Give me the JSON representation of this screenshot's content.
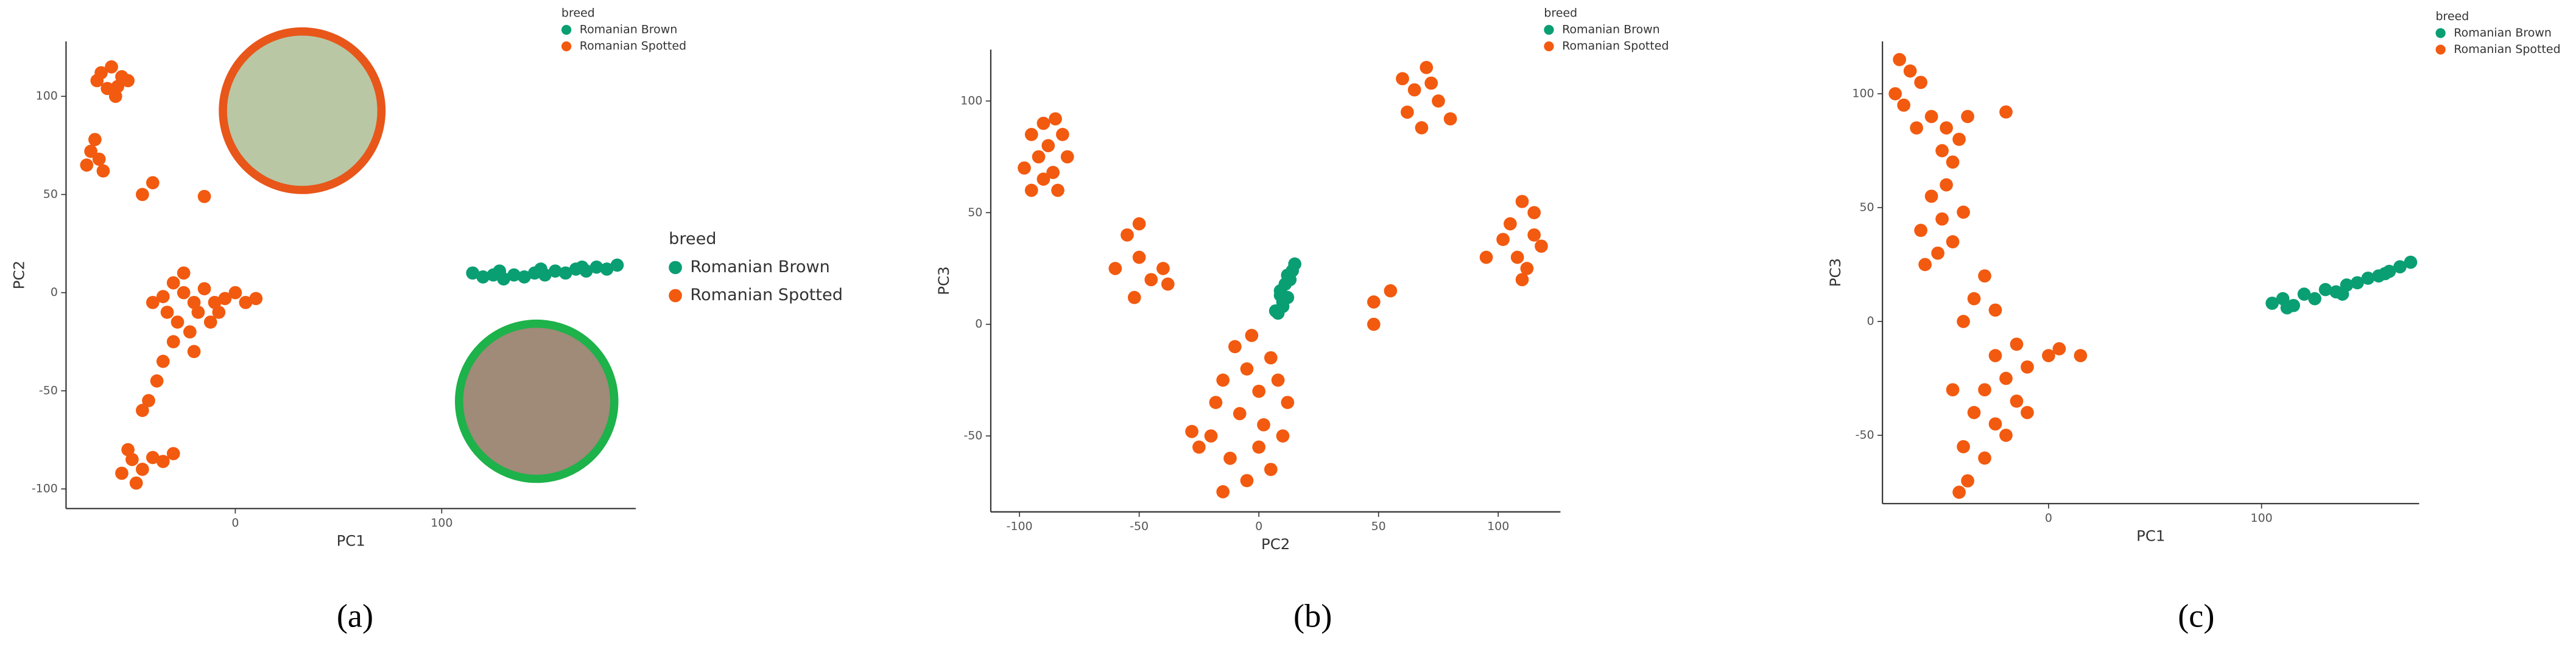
{
  "chart_data": [
    {
      "type": "scatter",
      "x_label": "PC1",
      "y_label": "PC2",
      "legend_title": "breed",
      "caption": "(a)",
      "xlim": [
        -82,
        194
      ],
      "ylim": [
        -110,
        128
      ],
      "xticks": [
        0,
        100
      ],
      "yticks": [
        -100,
        -50,
        0,
        50,
        100
      ],
      "series": [
        {
          "name": "Romanian Brown",
          "color": "#0a9e73",
          "x": [
            115,
            120,
            125,
            130,
            135,
            140,
            145,
            150,
            155,
            160,
            165,
            170,
            175,
            180,
            185,
            128,
            148,
            168
          ],
          "y": [
            10,
            8,
            9,
            7,
            9,
            8,
            10,
            9,
            11,
            10,
            12,
            11,
            13,
            12,
            14,
            11,
            12,
            13
          ]
        },
        {
          "name": "Romanian Spotted",
          "color": "#f25a0f",
          "x": [
            -65,
            -60,
            -55,
            -62,
            -57,
            -52,
            -67,
            -58,
            -70,
            -66,
            -72,
            -68,
            -64,
            -40,
            -45,
            -15,
            -30,
            -25,
            -20,
            -35,
            -15,
            -10,
            -5,
            5,
            10,
            -40,
            -28,
            -22,
            -30,
            -18,
            -25,
            -12,
            -20,
            -33,
            0,
            -8,
            -35,
            -38,
            -42,
            -45,
            -50,
            -45,
            -40,
            -55,
            -48,
            -35,
            -30,
            -52
          ],
          "y": [
            112,
            115,
            110,
            104,
            105,
            108,
            108,
            100,
            72,
            68,
            65,
            78,
            62,
            56,
            50,
            49,
            5,
            0,
            -5,
            -2,
            2,
            -5,
            -3,
            -5,
            -3,
            -5,
            -15,
            -20,
            -25,
            -10,
            10,
            -15,
            -30,
            -10,
            0,
            -10,
            -35,
            -45,
            -55,
            -60,
            -85,
            -90,
            -84,
            -92,
            -97,
            -86,
            -82,
            -80
          ]
        }
      ]
    },
    {
      "type": "scatter",
      "x_label": "PC2",
      "y_label": "PC3",
      "legend_title": "breed",
      "caption": "(b)",
      "xlim": [
        -112,
        126
      ],
      "ylim": [
        -84,
        123
      ],
      "xticks": [
        -100,
        -50,
        0,
        50,
        100
      ],
      "yticks": [
        -50,
        0,
        50,
        100
      ],
      "series": [
        {
          "name": "Romanian Brown",
          "color": "#0a9e73",
          "x": [
            8,
            10,
            12,
            9,
            11,
            13,
            14,
            10,
            12,
            15,
            7,
            9
          ],
          "y": [
            5,
            8,
            12,
            15,
            18,
            20,
            24,
            10,
            22,
            27,
            6,
            13
          ]
        },
        {
          "name": "Romanian Spotted",
          "color": "#f25a0f",
          "x": [
            -95,
            -90,
            -85,
            -92,
            -88,
            -82,
            -98,
            -86,
            -80,
            -95,
            -84,
            -90,
            -55,
            -50,
            -60,
            -50,
            -45,
            -52,
            -40,
            -38,
            60,
            65,
            70,
            75,
            62,
            68,
            80,
            72,
            105,
            110,
            115,
            108,
            112,
            118,
            102,
            95,
            110,
            115,
            48,
            55,
            48,
            -10,
            -5,
            0,
            5,
            -15,
            -8,
            2,
            -20,
            -25,
            10,
            -12,
            -5,
            5,
            -15,
            0,
            12,
            -3,
            -18,
            8,
            -28
          ],
          "y": [
            85,
            90,
            92,
            75,
            80,
            85,
            70,
            68,
            75,
            60,
            60,
            65,
            40,
            45,
            25,
            30,
            20,
            12,
            25,
            18,
            110,
            105,
            115,
            100,
            95,
            88,
            92,
            108,
            45,
            55,
            40,
            30,
            25,
            35,
            38,
            30,
            20,
            50,
            10,
            15,
            0,
            -10,
            -20,
            -30,
            -15,
            -25,
            -40,
            -45,
            -50,
            -55,
            -50,
            -60,
            -70,
            -65,
            -75,
            -55,
            -35,
            -5,
            -35,
            -25,
            -48
          ]
        }
      ]
    },
    {
      "type": "scatter",
      "x_label": "PC1",
      "y_label": "PC3",
      "legend_title": "breed",
      "caption": "(c)",
      "xlim": [
        -78,
        174
      ],
      "ylim": [
        -80,
        123
      ],
      "xticks": [
        0,
        100
      ],
      "yticks": [
        -50,
        0,
        50,
        100
      ],
      "series": [
        {
          "name": "Romanian Brown",
          "color": "#0a9e73",
          "x": [
            105,
            110,
            115,
            120,
            125,
            130,
            135,
            140,
            145,
            150,
            155,
            160,
            165,
            170,
            112,
            138,
            158
          ],
          "y": [
            8,
            10,
            7,
            12,
            10,
            14,
            13,
            16,
            17,
            19,
            20,
            22,
            24,
            26,
            6,
            12,
            21
          ]
        },
        {
          "name": "Romanian Spotted",
          "color": "#f25a0f",
          "x": [
            -70,
            -65,
            -72,
            -68,
            -60,
            -62,
            -55,
            -48,
            -42,
            -38,
            -50,
            -45,
            -20,
            -55,
            -50,
            -60,
            -45,
            -52,
            -58,
            -40,
            -48,
            -30,
            -35,
            -25,
            -40,
            -15,
            -25,
            -20,
            -10,
            0,
            5,
            15,
            -30,
            -35,
            -25,
            -15,
            -40,
            -30,
            -38,
            -42,
            -20,
            -10,
            -45
          ],
          "y": [
            115,
            110,
            100,
            95,
            105,
            85,
            90,
            85,
            80,
            90,
            75,
            70,
            92,
            55,
            45,
            40,
            35,
            30,
            25,
            48,
            60,
            20,
            10,
            5,
            0,
            -10,
            -15,
            -25,
            -20,
            -15,
            -12,
            -15,
            -30,
            -40,
            -45,
            -35,
            -55,
            -60,
            -70,
            -75,
            -50,
            -40,
            -30
          ]
        }
      ]
    }
  ]
}
